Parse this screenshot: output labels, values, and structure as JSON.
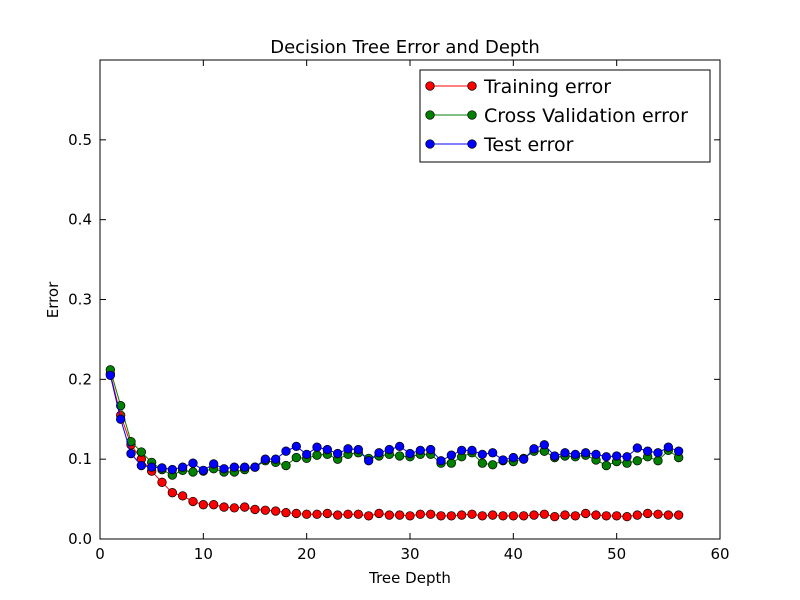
{
  "chart_data": {
    "type": "line",
    "title": "Decision Tree Error and Depth",
    "xlabel": "Tree Depth",
    "ylabel": "Error",
    "xlim": [
      0,
      60
    ],
    "ylim": [
      0,
      0.6
    ],
    "xticks": [
      0,
      10,
      20,
      30,
      40,
      50,
      60
    ],
    "yticks": [
      0.0,
      0.1,
      0.2,
      0.3,
      0.4,
      0.5
    ],
    "xtick_labels": [
      "0",
      "10",
      "20",
      "30",
      "40",
      "50",
      "60"
    ],
    "ytick_labels": [
      "0.0",
      "0.1",
      "0.2",
      "0.3",
      "0.4",
      "0.5"
    ],
    "grid": false,
    "legend_position": "top-right",
    "x": [
      1,
      2,
      3,
      4,
      5,
      6,
      7,
      8,
      9,
      10,
      11,
      12,
      13,
      14,
      15,
      16,
      17,
      18,
      19,
      20,
      21,
      22,
      23,
      24,
      25,
      26,
      27,
      28,
      29,
      30,
      31,
      32,
      33,
      34,
      35,
      36,
      37,
      38,
      39,
      40,
      41,
      42,
      43,
      44,
      45,
      46,
      47,
      48,
      49,
      50,
      51,
      52,
      53,
      54,
      55,
      56
    ],
    "series": [
      {
        "name": "Training error",
        "color": "#ff0000",
        "values": [
          0.207,
          0.155,
          0.118,
          0.1,
          0.085,
          0.071,
          0.058,
          0.054,
          0.047,
          0.043,
          0.043,
          0.04,
          0.039,
          0.04,
          0.037,
          0.036,
          0.035,
          0.033,
          0.032,
          0.031,
          0.031,
          0.032,
          0.03,
          0.031,
          0.031,
          0.029,
          0.032,
          0.03,
          0.03,
          0.029,
          0.031,
          0.031,
          0.029,
          0.029,
          0.03,
          0.031,
          0.029,
          0.03,
          0.029,
          0.029,
          0.029,
          0.03,
          0.031,
          0.028,
          0.03,
          0.029,
          0.032,
          0.03,
          0.029,
          0.029,
          0.028,
          0.03,
          0.032,
          0.031,
          0.03,
          0.03
        ]
      },
      {
        "name": "Cross Validation error",
        "color": "#008000",
        "values": [
          0.212,
          0.167,
          0.122,
          0.109,
          0.096,
          0.087,
          0.08,
          0.086,
          0.084,
          0.085,
          0.088,
          0.084,
          0.084,
          0.087,
          0.09,
          0.098,
          0.096,
          0.092,
          0.102,
          0.101,
          0.105,
          0.106,
          0.1,
          0.106,
          0.108,
          0.101,
          0.104,
          0.106,
          0.104,
          0.103,
          0.106,
          0.106,
          0.095,
          0.095,
          0.103,
          0.108,
          0.095,
          0.093,
          0.098,
          0.097,
          0.101,
          0.11,
          0.11,
          0.102,
          0.104,
          0.103,
          0.105,
          0.099,
          0.092,
          0.097,
          0.095,
          0.098,
          0.103,
          0.098,
          0.111,
          0.102
        ]
      },
      {
        "name": "Test error",
        "color": "#0000ff",
        "values": [
          0.205,
          0.15,
          0.107,
          0.092,
          0.09,
          0.089,
          0.087,
          0.09,
          0.095,
          0.086,
          0.094,
          0.088,
          0.09,
          0.09,
          0.09,
          0.1,
          0.1,
          0.11,
          0.116,
          0.106,
          0.115,
          0.112,
          0.107,
          0.113,
          0.112,
          0.098,
          0.108,
          0.112,
          0.116,
          0.107,
          0.111,
          0.112,
          0.098,
          0.105,
          0.111,
          0.111,
          0.106,
          0.108,
          0.099,
          0.102,
          0.1,
          0.113,
          0.118,
          0.104,
          0.108,
          0.106,
          0.108,
          0.106,
          0.103,
          0.104,
          0.103,
          0.114,
          0.11,
          0.108,
          0.115,
          0.11
        ]
      }
    ]
  }
}
